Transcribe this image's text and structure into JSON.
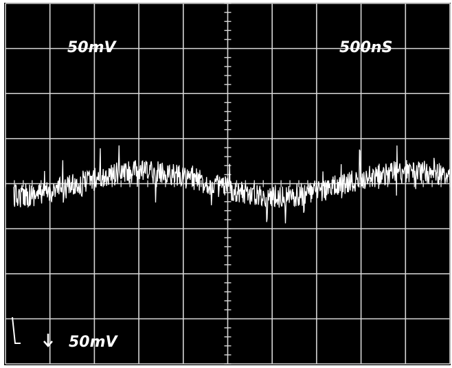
{
  "screen": {
    "channel_scale": "50mV",
    "time_scale": "500nS",
    "marker_label": "50mV"
  }
}
